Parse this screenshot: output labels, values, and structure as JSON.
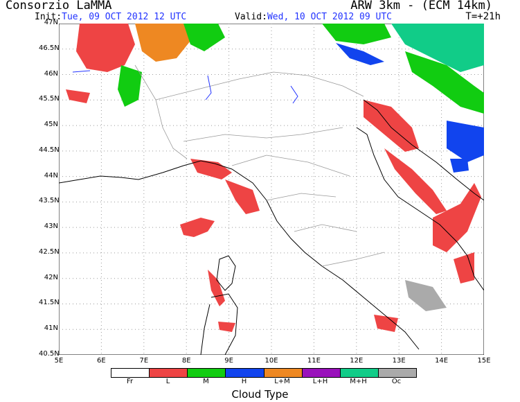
{
  "header": {
    "agency": "Consorzio LaMMA",
    "model": "ARW 3km - (ECM 14km)",
    "init_label": "Init:",
    "init_value": "Tue, 09 OCT 2012  12 UTC",
    "valid_label": "Valid:",
    "valid_value": "Wed, 10 OCT 2012  09 UTC",
    "forecast_hour": "T=+21h"
  },
  "axes": {
    "lat_ticks": [
      "47N",
      "46.5N",
      "46N",
      "45.5N",
      "45N",
      "44.5N",
      "44N",
      "43.5N",
      "43N",
      "42.5N",
      "42N",
      "41.5N",
      "41N",
      "40.5N"
    ],
    "lon_ticks": [
      "5E",
      "6E",
      "7E",
      "8E",
      "9E",
      "10E",
      "11E",
      "12E",
      "13E",
      "14E",
      "15E"
    ],
    "lon_range": [
      5,
      15
    ],
    "lat_range": [
      40.5,
      47
    ]
  },
  "legend": {
    "title": "Cloud Type",
    "classes": [
      {
        "label": "Fr",
        "color": "#ffffff"
      },
      {
        "label": "L",
        "color": "#ee4444"
      },
      {
        "label": "M",
        "color": "#11cc11"
      },
      {
        "label": "H",
        "color": "#1144ee"
      },
      {
        "label": "L+M",
        "color": "#ee8822"
      },
      {
        "label": "L+H",
        "color": "#9911bb"
      },
      {
        "label": "M+H",
        "color": "#11cc88"
      },
      {
        "label": "Oc",
        "color": "#aaaaaa"
      }
    ]
  }
}
